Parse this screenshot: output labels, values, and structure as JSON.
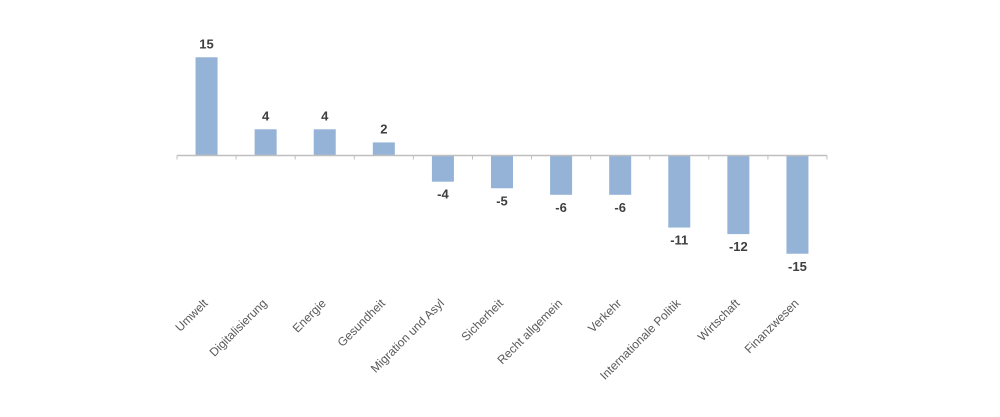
{
  "chart_data": {
    "type": "bar",
    "categories": [
      "Umwelt",
      "Digitalisierung",
      "Energie",
      "Gesundheit",
      "Migration und Asyl",
      "Sicherheit",
      "Recht allgemein",
      "Verkehr",
      "Internationale Politik",
      "Wirtschaft",
      "Finanzwesen"
    ],
    "values": [
      15,
      4,
      4,
      2,
      -4,
      -5,
      -6,
      -6,
      -11,
      -12,
      -15
    ],
    "value_labels": [
      "15",
      "4",
      "4",
      "2",
      "-4",
      "-5",
      "-6",
      "-6",
      "-11",
      "-12",
      "-15"
    ],
    "title": "",
    "xlabel": "",
    "ylabel": "",
    "ylim": [
      -15,
      15
    ],
    "grid": false,
    "legend": "none",
    "bar_color": "#95b3d7",
    "axis_color": "#bfbfbf",
    "label_color": "#3f3f3f"
  }
}
